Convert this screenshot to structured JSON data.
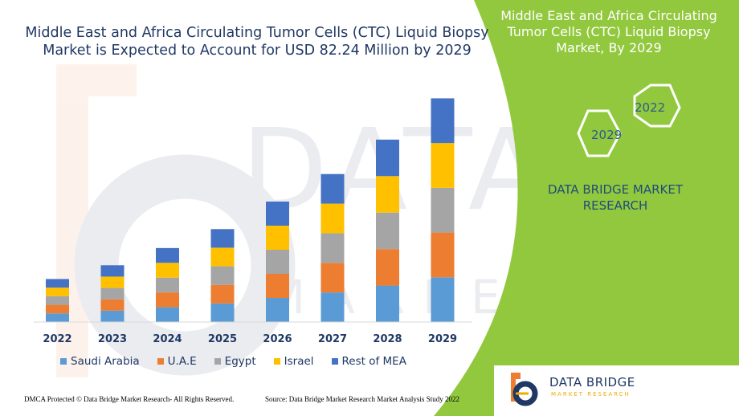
{
  "title": "Middle East and Africa Circulating Tumor Cells (CTC) Liquid Biopsy Market is Expected to Account for USD 82.24 Million by 2029",
  "side_panel": {
    "title": "Middle East and Africa Circulating Tumor Cells (CTC) Liquid Biopsy Market, By 2029",
    "hex_labels": [
      "2022",
      "2029"
    ],
    "brand": "DATA BRIDGE MARKET RESEARCH"
  },
  "logo": {
    "name": "DATA BRIDGE",
    "tagline": "MARKET RESEARCH"
  },
  "footer": {
    "left": "DMCA Protected © Data Bridge Market Research- All Rights Reserved.",
    "right": "Source: Data Bridge Market Research Market Analysis Study 2022"
  },
  "colors": {
    "Saudi Arabia": "#5b9bd5",
    "U.A.E": "#ed7d31",
    "Egypt": "#a5a5a5",
    "Israel": "#ffc000",
    "Rest of MEA": "#4472c4",
    "panel": "#92c83e"
  },
  "chart_data": {
    "type": "bar",
    "stacked": true,
    "categories": [
      "2022",
      "2023",
      "2024",
      "2025",
      "2026",
      "2027",
      "2028",
      "2029"
    ],
    "series": [
      {
        "name": "Saudi Arabia",
        "values": [
          2.5,
          3.3,
          4.3,
          5.4,
          7.0,
          8.6,
          10.6,
          13.0
        ]
      },
      {
        "name": "U.A.E",
        "values": [
          2.5,
          3.3,
          4.3,
          5.4,
          7.0,
          8.6,
          10.6,
          13.0
        ]
      },
      {
        "name": "Egypt",
        "values": [
          2.5,
          3.3,
          4.3,
          5.4,
          7.0,
          8.6,
          10.6,
          13.0
        ]
      },
      {
        "name": "Israel",
        "values": [
          2.5,
          3.3,
          4.3,
          5.4,
          7.0,
          8.6,
          10.6,
          13.0
        ]
      },
      {
        "name": "Rest of MEA",
        "values": [
          2.5,
          3.3,
          4.3,
          5.4,
          7.0,
          8.6,
          10.6,
          13.0
        ]
      }
    ],
    "ylim": [
      0,
      70
    ],
    "legend": "bottom",
    "grid": false
  }
}
